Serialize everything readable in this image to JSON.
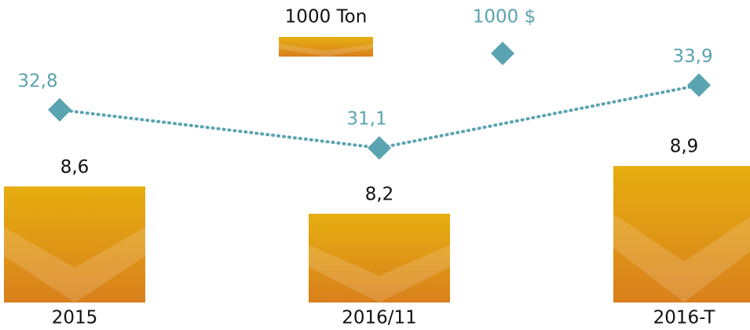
{
  "chart_data": {
    "type": "bar-line",
    "categories": [
      "2015",
      "2016/11",
      "2016-T"
    ],
    "series": [
      {
        "name": "1000 Ton",
        "type": "bar",
        "color": "#e0a015",
        "values": [
          8.6,
          8.2,
          8.9
        ],
        "value_labels": [
          "8,6",
          "8,2",
          "8,9"
        ]
      },
      {
        "name": "1000 $",
        "type": "line",
        "axis": "y2",
        "color": "#5aa3b0",
        "values": [
          32.8,
          31.1,
          33.9
        ],
        "value_labels": [
          "32,8",
          "31,1",
          "33,9"
        ]
      }
    ],
    "ylim": [
      6.9,
      11.1
    ],
    "y2lim": [
      24.2,
      37
    ]
  }
}
